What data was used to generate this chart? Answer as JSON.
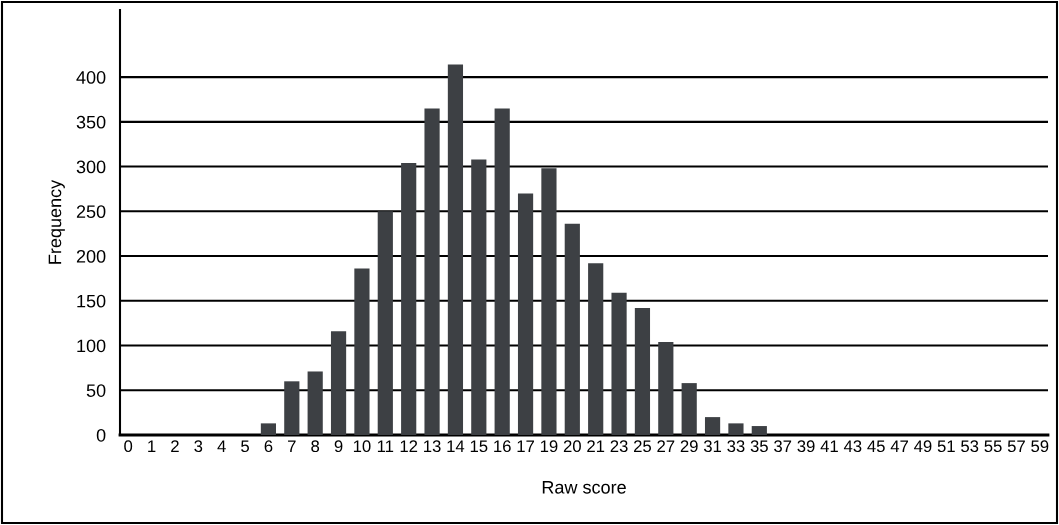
{
  "chart_data": {
    "type": "bar",
    "xlabel": "Raw score",
    "ylabel": "Frequency",
    "categories": [
      "0",
      "1",
      "2",
      "3",
      "4",
      "5",
      "6",
      "7",
      "8",
      "9",
      "10",
      "11",
      "12",
      "13",
      "14",
      "15",
      "16",
      "17",
      "19",
      "20",
      "21",
      "23",
      "25",
      "27",
      "29",
      "31",
      "33",
      "35",
      "37",
      "39",
      "41",
      "43",
      "45",
      "47",
      "49",
      "51",
      "53",
      "55",
      "57",
      "59"
    ],
    "values": [
      0,
      0,
      0,
      0,
      0,
      0,
      13,
      60,
      71,
      116,
      186,
      250,
      304,
      365,
      414,
      308,
      365,
      270,
      298,
      236,
      192,
      159,
      142,
      104,
      58,
      20,
      13,
      10,
      0,
      0,
      0,
      0,
      0,
      0,
      0,
      0,
      0,
      0,
      0,
      0
    ],
    "color": "#3d4044",
    "ylim": [
      0,
      475
    ],
    "yticks": [
      0,
      50,
      100,
      150,
      200,
      250,
      300,
      350,
      400
    ],
    "grid": "y"
  }
}
